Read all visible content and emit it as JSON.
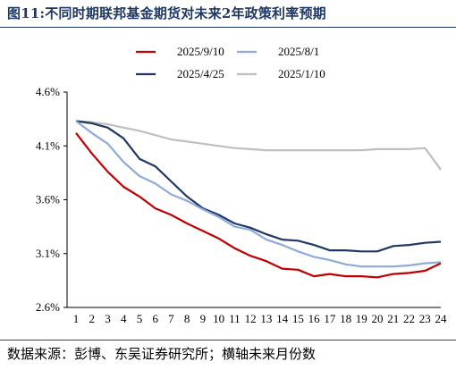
{
  "header": {
    "figure_no": "图11:",
    "title": "不同时期联邦基金期货对未来2年政策利率预期"
  },
  "source": "数据来源：彭博、东吴证券研究所；横轴未来月份数",
  "chart_data": {
    "type": "line",
    "title": "不同时期联邦基金期货对未来2年政策利率预期",
    "xlabel": "",
    "ylabel": "",
    "x": [
      1,
      2,
      3,
      4,
      5,
      6,
      7,
      8,
      9,
      10,
      11,
      12,
      13,
      14,
      15,
      16,
      17,
      18,
      19,
      20,
      21,
      22,
      23,
      24
    ],
    "x_tick_labels": [
      "1",
      "2",
      "3",
      "4",
      "5",
      "6",
      "7",
      "8",
      "9",
      "10",
      "11",
      "12",
      "13",
      "14",
      "15",
      "16",
      "17",
      "18",
      "19",
      "20",
      "21",
      "22",
      "23",
      "24"
    ],
    "ylim": [
      2.6,
      4.6
    ],
    "y_ticks": [
      2.6,
      3.1,
      3.6,
      4.1,
      4.6
    ],
    "y_tick_labels": [
      "2.6%",
      "3.1%",
      "3.6%",
      "4.1%",
      "4.6%"
    ],
    "grid": false,
    "legend_position": "top",
    "series": [
      {
        "name": "2025/9/10",
        "color": "#c00000",
        "values": [
          4.22,
          4.03,
          3.86,
          3.72,
          3.63,
          3.52,
          3.46,
          3.38,
          3.31,
          3.24,
          3.15,
          3.08,
          3.03,
          2.96,
          2.95,
          2.89,
          2.91,
          2.89,
          2.89,
          2.88,
          2.91,
          2.92,
          2.94,
          3.01
        ]
      },
      {
        "name": "2025/8/1",
        "color": "#8eaadb",
        "values": [
          4.33,
          4.22,
          4.12,
          3.95,
          3.82,
          3.75,
          3.65,
          3.59,
          3.51,
          3.44,
          3.35,
          3.32,
          3.23,
          3.18,
          3.12,
          3.07,
          3.04,
          3.0,
          2.98,
          2.98,
          2.98,
          2.99,
          3.01,
          3.02
        ]
      },
      {
        "name": "2025/4/25",
        "color": "#1f3864",
        "values": [
          4.33,
          4.31,
          4.27,
          4.17,
          3.98,
          3.91,
          3.77,
          3.63,
          3.52,
          3.46,
          3.38,
          3.34,
          3.28,
          3.23,
          3.22,
          3.18,
          3.13,
          3.13,
          3.12,
          3.12,
          3.17,
          3.18,
          3.2,
          3.21
        ]
      },
      {
        "name": "2025/1/10",
        "color": "#bfbfbf",
        "values": [
          4.33,
          4.32,
          4.3,
          4.27,
          4.24,
          4.2,
          4.16,
          4.14,
          4.12,
          4.1,
          4.08,
          4.07,
          4.06,
          4.06,
          4.06,
          4.06,
          4.06,
          4.06,
          4.06,
          4.07,
          4.07,
          4.07,
          4.08,
          3.88
        ]
      }
    ]
  }
}
